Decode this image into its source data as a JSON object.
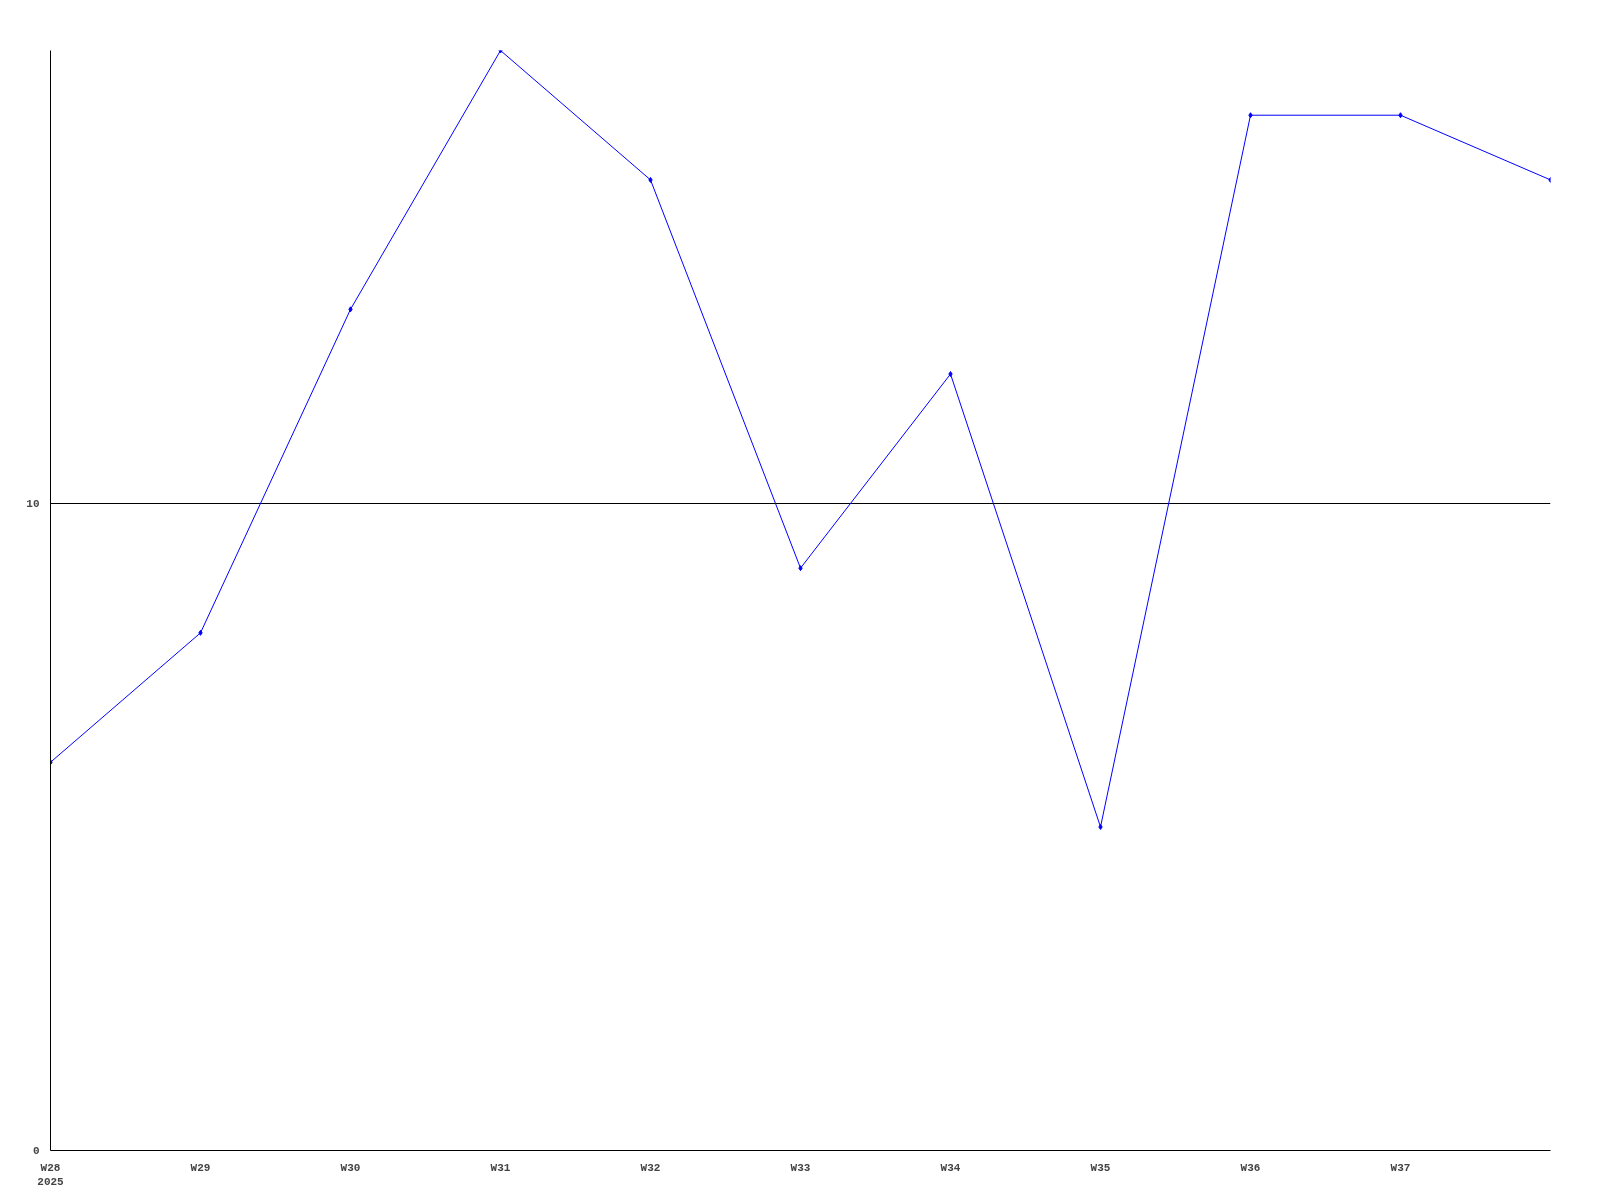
{
  "chart_data": {
    "type": "line",
    "categories": [
      "W28\n2025",
      "W29",
      "W30",
      "W31",
      "W32",
      "W33",
      "W34",
      "W35",
      "W36",
      "W37",
      null
    ],
    "series": [
      {
        "color": "#0000ff",
        "values": [
          6,
          8,
          13,
          17,
          15,
          9,
          12,
          5,
          16,
          16,
          15
        ]
      }
    ],
    "ylim": [
      0,
      17
    ],
    "yticks": [
      0,
      10
    ],
    "grid": "y",
    "marker": "diamond",
    "line_style": "solid"
  }
}
